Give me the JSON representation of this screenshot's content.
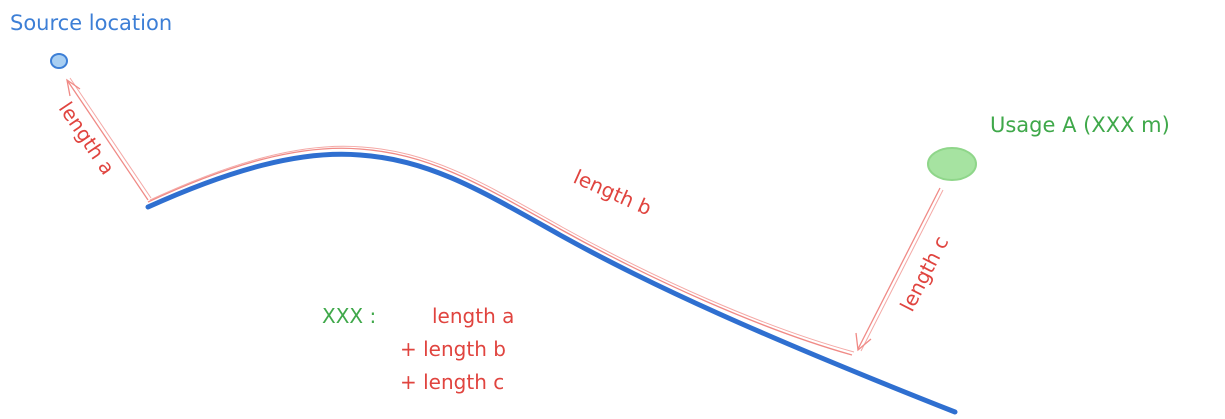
{
  "labels": {
    "source": "Source location",
    "usage": "Usage A (XXX m)",
    "length_a": "length a",
    "length_b": "length b",
    "length_c": "length c"
  },
  "formula": {
    "variable": "XXX :",
    "line1": "length a",
    "line2": "+ length b",
    "line3": "+ length c"
  },
  "colors": {
    "pipe": "#2f6fd0",
    "arrow": "#f08a86",
    "source_node": "#a9cff2",
    "usage_node": "#a6e3a1",
    "text_blue": "#3d7fd6",
    "text_green": "#3fa84a",
    "text_red": "#e0443f"
  }
}
